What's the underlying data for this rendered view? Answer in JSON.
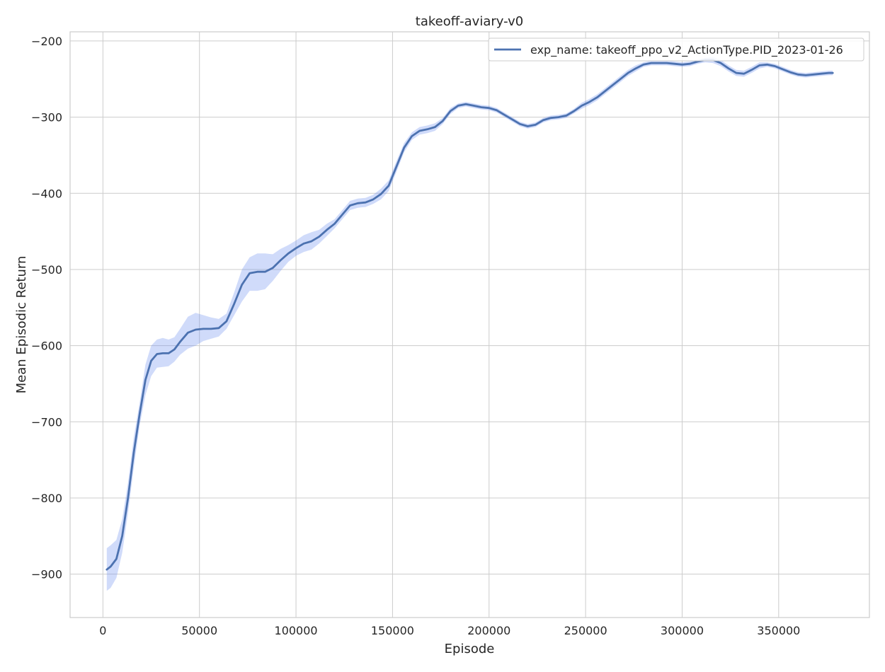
{
  "chart_data": {
    "type": "line",
    "title": "takeoff-aviary-v0",
    "xlabel": "Episode",
    "ylabel": "Mean Episodic Return",
    "xlim": [
      -17000,
      397000
    ],
    "ylim": [
      -957,
      -188
    ],
    "xticks": [
      0,
      50000,
      100000,
      150000,
      200000,
      250000,
      300000,
      350000
    ],
    "yticks": [
      -900,
      -800,
      -700,
      -600,
      -500,
      -400,
      -300,
      -200
    ],
    "grid": true,
    "legend_position": "top-right",
    "colors": {
      "line": "#4c72b0",
      "band": "#6c8ff0",
      "grid": "#cccccc",
      "frame": "#cccccc"
    },
    "series": [
      {
        "name": "exp_name: takeoff_ppo_v2_ActionType.PID_2023-01-26",
        "x": [
          2000,
          4000,
          7000,
          10000,
          13000,
          16000,
          19000,
          22000,
          25000,
          28000,
          31000,
          34000,
          37000,
          40000,
          44000,
          48000,
          52000,
          56000,
          60000,
          64000,
          68000,
          72000,
          76000,
          80000,
          84000,
          88000,
          92000,
          96000,
          100000,
          104000,
          108000,
          112000,
          116000,
          120000,
          124000,
          128000,
          132000,
          136000,
          140000,
          144000,
          148000,
          152000,
          156000,
          160000,
          164000,
          168000,
          172000,
          176000,
          180000,
          184000,
          188000,
          192000,
          196000,
          200000,
          204000,
          208000,
          212000,
          216000,
          220000,
          224000,
          228000,
          232000,
          236000,
          240000,
          244000,
          248000,
          252000,
          256000,
          260000,
          264000,
          268000,
          272000,
          276000,
          280000,
          284000,
          288000,
          292000,
          296000,
          300000,
          304000,
          308000,
          312000,
          316000,
          320000,
          324000,
          328000,
          332000,
          336000,
          340000,
          344000,
          348000,
          352000,
          356000,
          360000,
          364000,
          368000,
          372000,
          376000,
          378000
        ],
        "y": [
          -894,
          -890,
          -880,
          -850,
          -800,
          -740,
          -690,
          -645,
          -620,
          -611,
          -610,
          -610,
          -605,
          -595,
          -583,
          -579,
          -578,
          -578,
          -577,
          -568,
          -545,
          -520,
          -505,
          -503,
          -503,
          -498,
          -488,
          -479,
          -472,
          -466,
          -463,
          -457,
          -448,
          -440,
          -428,
          -416,
          -413,
          -412,
          -408,
          -401,
          -390,
          -365,
          -340,
          -325,
          -318,
          -316,
          -313,
          -305,
          -292,
          -285,
          -283,
          -285,
          -287,
          -288,
          -291,
          -297,
          -303,
          -309,
          -312,
          -310,
          -304,
          -301,
          -300,
          -298,
          -292,
          -285,
          -280,
          -274,
          -266,
          -258,
          -250,
          -242,
          -236,
          -231,
          -229,
          -229,
          -229,
          -230,
          -231,
          -230,
          -227,
          -225,
          -225,
          -229,
          -236,
          -242,
          -243,
          -238,
          -232,
          -231,
          -233,
          -237,
          -241,
          -244,
          -245,
          -244,
          -243,
          -242,
          -242
        ],
        "lower": [
          -922,
          -918,
          -905,
          -872,
          -820,
          -760,
          -705,
          -665,
          -640,
          -629,
          -628,
          -627,
          -621,
          -612,
          -604,
          -600,
          -594,
          -591,
          -588,
          -578,
          -560,
          -542,
          -528,
          -528,
          -526,
          -515,
          -502,
          -490,
          -482,
          -477,
          -474,
          -466,
          -456,
          -446,
          -434,
          -422,
          -419,
          -418,
          -414,
          -408,
          -397,
          -372,
          -346,
          -330,
          -323,
          -321,
          -318,
          -309,
          -296,
          -288,
          -286,
          -288,
          -290,
          -291,
          -294,
          -300,
          -306,
          -312,
          -315,
          -313,
          -307,
          -304,
          -303,
          -301,
          -295,
          -289,
          -284,
          -278,
          -270,
          -262,
          -254,
          -246,
          -240,
          -234,
          -232,
          -232,
          -232,
          -233,
          -234,
          -233,
          -230,
          -228,
          -229,
          -233,
          -240,
          -246,
          -247,
          -242,
          -236,
          -234,
          -236,
          -240,
          -244,
          -247,
          -248,
          -247,
          -246,
          -245,
          -245
        ],
        "upper": [
          -866,
          -862,
          -855,
          -828,
          -780,
          -720,
          -675,
          -625,
          -600,
          -592,
          -590,
          -592,
          -589,
          -578,
          -562,
          -557,
          -560,
          -563,
          -565,
          -558,
          -530,
          -500,
          -484,
          -479,
          -479,
          -480,
          -473,
          -468,
          -462,
          -455,
          -451,
          -448,
          -440,
          -434,
          -422,
          -410,
          -407,
          -406,
          -402,
          -394,
          -383,
          -358,
          -334,
          -320,
          -313,
          -311,
          -308,
          -301,
          -288,
          -282,
          -280,
          -282,
          -284,
          -285,
          -288,
          -294,
          -300,
          -306,
          -309,
          -307,
          -301,
          -298,
          -297,
          -295,
          -289,
          -281,
          -276,
          -270,
          -262,
          -254,
          -246,
          -238,
          -232,
          -228,
          -226,
          -226,
          -226,
          -227,
          -228,
          -227,
          -224,
          -222,
          -221,
          -225,
          -232,
          -238,
          -239,
          -234,
          -228,
          -228,
          -230,
          -234,
          -238,
          -241,
          -242,
          -241,
          -240,
          -239,
          -239
        ]
      }
    ]
  }
}
